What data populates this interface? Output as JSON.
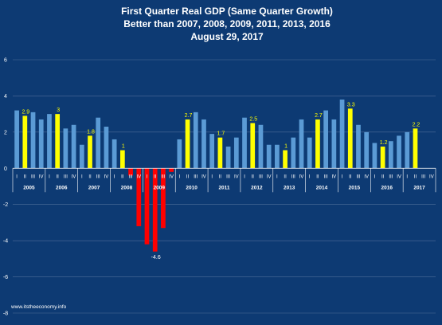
{
  "colors": {
    "background": "#0d3a73",
    "other_quarter": "#5b9bd5",
    "first_quarter_positive": "#ffff00",
    "first_quarter_negative": "#ff0000",
    "text": "#ffffff",
    "label": "#ffff00",
    "gridline": "#4f6f9a"
  },
  "chart_data": {
    "type": "bar",
    "title": [
      "First Quarter Real GDP (Same Quarter Growth)",
      "Better than 2007, 2008, 2009, 2011, 2013, 2016",
      "August 29, 2017"
    ],
    "xlabel": "",
    "ylabel": "",
    "ylim": [
      -8,
      6
    ],
    "yticks": [
      -8,
      -6,
      -4,
      -2,
      0,
      2,
      4,
      6
    ],
    "grid": "horizontal",
    "legend": "none",
    "quarter_labels": [
      "I",
      "II",
      "III",
      "IV"
    ],
    "years": [
      "2005",
      "2006",
      "2007",
      "2008",
      "2009",
      "2010",
      "2011",
      "2012",
      "2013",
      "2014",
      "2015",
      "2016",
      "2017"
    ],
    "highlight_quarter": "II",
    "values": [
      3.2,
      2.9,
      3.1,
      2.7,
      3.0,
      3.0,
      2.2,
      2.4,
      1.3,
      1.8,
      2.8,
      2.3,
      1.6,
      1.0,
      -0.4,
      -3.2,
      -4.2,
      -4.6,
      -3.3,
      -0.2,
      1.6,
      2.7,
      3.1,
      2.7,
      1.9,
      1.7,
      1.2,
      1.7,
      2.8,
      2.5,
      2.4,
      1.3,
      1.3,
      1.0,
      1.7,
      2.7,
      1.7,
      2.7,
      3.2,
      2.7,
      3.8,
      3.3,
      2.4,
      2.0,
      1.4,
      1.2,
      1.5,
      1.8,
      2.0,
      2.2,
      null,
      null
    ],
    "data_labels": [
      {
        "year": "2005",
        "quarter": "II",
        "text": "2.9"
      },
      {
        "year": "2006",
        "quarter": "II",
        "text": "3"
      },
      {
        "year": "2007",
        "quarter": "II",
        "text": "1.8"
      },
      {
        "year": "2008",
        "quarter": "II",
        "text": "1"
      },
      {
        "year": "2009",
        "quarter": "II",
        "text": "-4.6"
      },
      {
        "year": "2010",
        "quarter": "II",
        "text": "2.7"
      },
      {
        "year": "2011",
        "quarter": "II",
        "text": "1.7"
      },
      {
        "year": "2012",
        "quarter": "II",
        "text": "2.5"
      },
      {
        "year": "2013",
        "quarter": "II",
        "text": "1"
      },
      {
        "year": "2014",
        "quarter": "II",
        "text": "2.7"
      },
      {
        "year": "2015",
        "quarter": "II",
        "text": "3.3"
      },
      {
        "year": "2016",
        "quarter": "II",
        "text": "1.2"
      },
      {
        "year": "2017",
        "quarter": "II",
        "text": "2.2"
      }
    ],
    "watermark": "www.itstheeconomy.info"
  }
}
